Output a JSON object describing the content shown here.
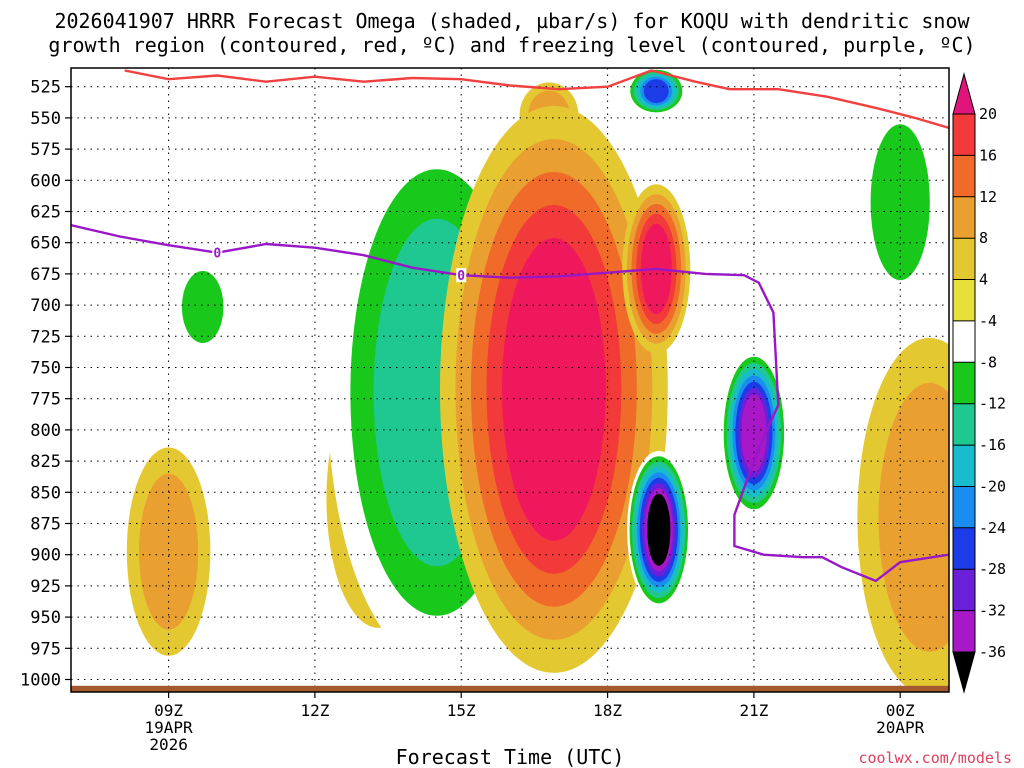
{
  "chart_data": {
    "type": "heatmap",
    "title_line1": "2026041907 HRRR Forecast Omega (shaded, µbar/s) for KOQU with dendritic snow",
    "title_line2": "growth region (contoured, red, ºC) and freezing level (contoured, purple, ºC)",
    "xlabel": "Forecast Time (UTC)",
    "ylabel": "",
    "credit": "coolwx.com/models",
    "x_range_hours": [
      7.0,
      25.0
    ],
    "y_range_hPa": [
      510,
      1010
    ],
    "pressure_ticks": [
      525,
      550,
      575,
      600,
      625,
      650,
      675,
      700,
      725,
      750,
      775,
      800,
      825,
      850,
      875,
      900,
      925,
      950,
      975,
      1000
    ],
    "x_ticks": [
      {
        "hour": 9,
        "lines": [
          "09Z",
          "19APR",
          "2026"
        ]
      },
      {
        "hour": 12,
        "lines": [
          "12Z"
        ]
      },
      {
        "hour": 15,
        "lines": [
          "15Z"
        ]
      },
      {
        "hour": 18,
        "lines": [
          "18Z"
        ]
      },
      {
        "hour": 21,
        "lines": [
          "21Z"
        ]
      },
      {
        "hour": 24,
        "lines": [
          "00Z",
          "20APR"
        ]
      }
    ],
    "colorbar": {
      "labels": [
        "20",
        "16",
        "12",
        "8",
        "4",
        "-4",
        "-8",
        "-12",
        "-16",
        "-20",
        "-24",
        "-28",
        "-32",
        "-36"
      ],
      "colors": [
        "#f0185c",
        "#f23a3a",
        "#f06a2a",
        "#eaa030",
        "#e4c832",
        "#e8e03a",
        "#ffffff",
        "#18c81a",
        "#1ec890",
        "#18bccc",
        "#1a8ef0",
        "#1c3ce8",
        "#6a20d8",
        "#a818c8",
        "#a8a8a8",
        "#000000"
      ],
      "top_arrow_color": "#e0147a",
      "bottom_arrow_color": "#000000"
    },
    "omega_features": [
      {
        "label": "strong ascent core",
        "hour": 16.9,
        "p_top": 570,
        "p_bottom": 965,
        "value": 20,
        "halo": true
      },
      {
        "label": "ascent cell",
        "hour": 19.0,
        "p_top": 612,
        "p_bottom": 730,
        "value": 20,
        "halo": true
      },
      {
        "label": "upper ascent",
        "hour": 16.8,
        "p_top": 525,
        "p_bottom": 570,
        "value": 8,
        "halo": false
      },
      {
        "label": "weak ascent",
        "hour": 13.3,
        "p_top": 765,
        "p_bottom": 945,
        "value": 4,
        "halo": false
      },
      {
        "label": "weak ascent",
        "hour": 9.0,
        "p_top": 825,
        "p_bottom": 970,
        "value": 8,
        "halo": false
      },
      {
        "label": "weak ascent",
        "hour": 24.6,
        "p_top": 745,
        "p_bottom": 995,
        "value": 8,
        "halo": false
      },
      {
        "label": "strong descent core",
        "hour": 19.05,
        "p_top": 825,
        "p_bottom": 935,
        "value": -36,
        "halo": false
      },
      {
        "label": "descent cell",
        "hour": 21.0,
        "p_top": 745,
        "p_bottom": 860,
        "value": -32,
        "halo": false
      },
      {
        "label": "descent upper",
        "hour": 19.0,
        "p_top": 512,
        "p_bottom": 545,
        "value": -24,
        "halo": false
      },
      {
        "label": "descent band",
        "hour": 14.5,
        "p_top": 580,
        "p_bottom": 960,
        "value": -12,
        "halo": false
      },
      {
        "label": "weak descent",
        "hour": 9.7,
        "p_top": 668,
        "p_bottom": 735,
        "value": -8,
        "halo": false
      },
      {
        "label": "weak descent",
        "hour": 24.0,
        "p_top": 545,
        "p_bottom": 690,
        "value": -8,
        "halo": false
      }
    ],
    "dendritic_contour": {
      "color": "#f04040",
      "points": [
        [
          8.1,
          512
        ],
        [
          9.0,
          519
        ],
        [
          10.0,
          516
        ],
        [
          11.0,
          521
        ],
        [
          12.0,
          517
        ],
        [
          13.0,
          521
        ],
        [
          14.0,
          518
        ],
        [
          15.0,
          519
        ],
        [
          16.0,
          524
        ],
        [
          17.0,
          527
        ],
        [
          18.0,
          525
        ],
        [
          18.9,
          512
        ],
        [
          19.8,
          521
        ],
        [
          20.5,
          527
        ],
        [
          21.5,
          527
        ],
        [
          22.5,
          533
        ],
        [
          23.5,
          542
        ],
        [
          24.3,
          550
        ],
        [
          25.0,
          558
        ]
      ]
    },
    "freezing_level_contour": {
      "color": "#9818c8",
      "label": "0",
      "label_hours": [
        10.0,
        15.0
      ],
      "points": [
        [
          7.0,
          636
        ],
        [
          8.0,
          645
        ],
        [
          9.0,
          652
        ],
        [
          10.0,
          658
        ],
        [
          11.0,
          651
        ],
        [
          12.0,
          654
        ],
        [
          13.0,
          660
        ],
        [
          14.0,
          670
        ],
        [
          15.0,
          676
        ],
        [
          16.0,
          678
        ],
        [
          17.0,
          677
        ],
        [
          18.0,
          674
        ],
        [
          19.0,
          671
        ],
        [
          20.0,
          675
        ],
        [
          20.8,
          676
        ],
        [
          21.1,
          682
        ],
        [
          21.4,
          706
        ],
        [
          21.5,
          780
        ],
        [
          21.2,
          806
        ],
        [
          20.9,
          836
        ],
        [
          20.6,
          868
        ],
        [
          20.6,
          893
        ],
        [
          21.2,
          900
        ],
        [
          22.0,
          902
        ],
        [
          22.4,
          902
        ],
        [
          22.8,
          910
        ],
        [
          23.5,
          921
        ],
        [
          24.0,
          906
        ],
        [
          25.0,
          900
        ]
      ]
    },
    "ground": {
      "color": "#a45a2e",
      "top_hPa": 1005
    }
  }
}
